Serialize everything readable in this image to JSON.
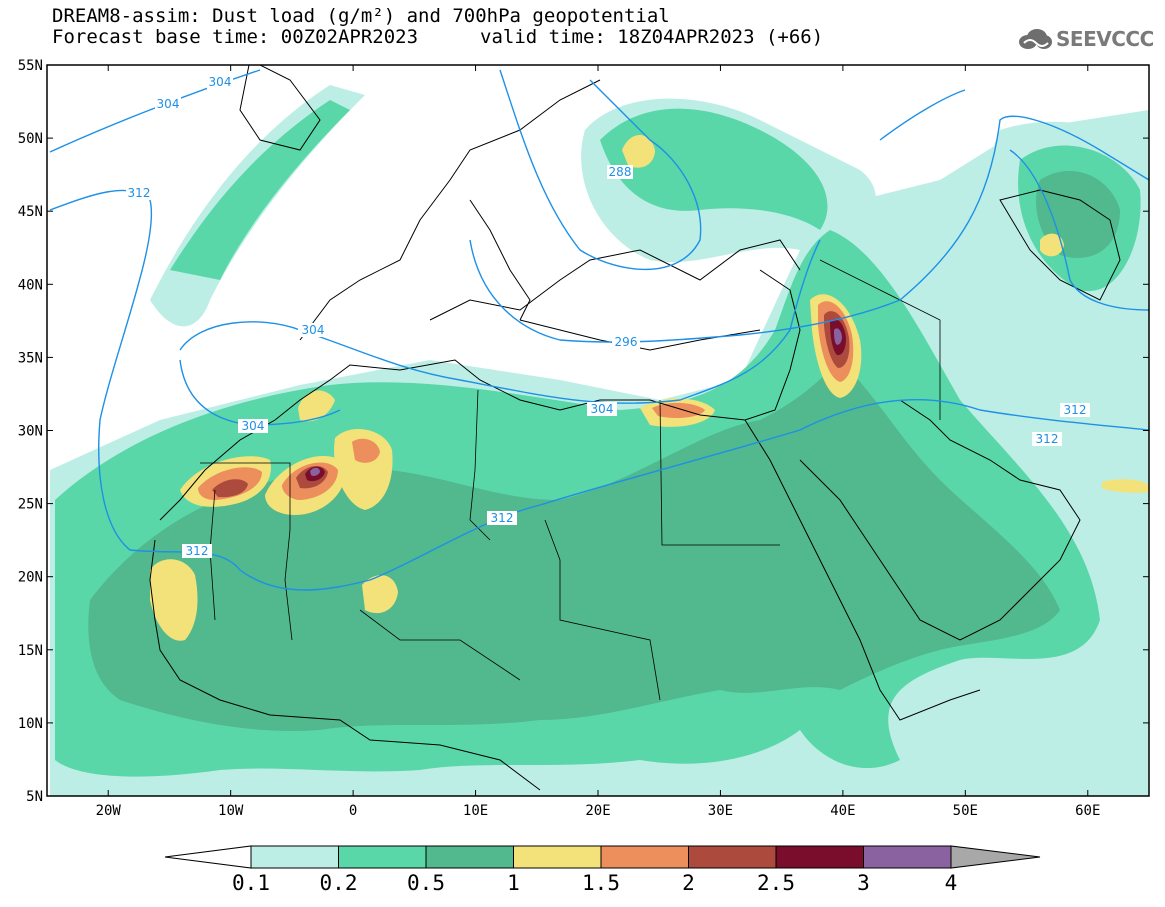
{
  "title": {
    "line1": "DREAM8-assim: Dust load (g/m²) and 700hPa geopotential",
    "line2_left": "Forecast base time: 00Z02APR2023",
    "line2_right": "valid time: 18Z04APR2023 (+66)"
  },
  "logo": {
    "text": "SEEVCCC",
    "icon": "cloud-icon"
  },
  "map": {
    "lon_range": [
      -25,
      65
    ],
    "lat_range": [
      5,
      55
    ],
    "lon_ticks": [
      "20W",
      "10W",
      "0",
      "10E",
      "20E",
      "30E",
      "40E",
      "50E",
      "60E"
    ],
    "lat_ticks": [
      "55N",
      "50N",
      "45N",
      "40N",
      "35N",
      "30N",
      "25N",
      "20N",
      "15N",
      "10N",
      "5N"
    ]
  },
  "contours": {
    "labels": [
      "304",
      "304",
      "312",
      "288",
      "304",
      "296",
      "304",
      "304",
      "312",
      "312",
      "312",
      "312"
    ],
    "color": "#1e90e6"
  },
  "colorbar": {
    "labels": [
      "0.1",
      "0.2",
      "0.5",
      "1",
      "1.5",
      "2",
      "2.5",
      "3",
      "4"
    ],
    "colors": [
      "#bdeee6",
      "#5ad7a8",
      "#52b88d",
      "#f3e27a",
      "#ec8f5c",
      "#ab4a3d",
      "#7a0d2c",
      "#8a62a0"
    ],
    "low_color": "#ffffff",
    "high_color": "#a8a8a8"
  },
  "levels": {
    "l1": "#bdeee6",
    "l2": "#5ad7a8",
    "l3": "#52b88d",
    "l4": "#f3e27a",
    "l5": "#ec8f5c",
    "l6": "#ab4a3d",
    "l7": "#7a0d2c",
    "l8": "#8a62a0"
  }
}
